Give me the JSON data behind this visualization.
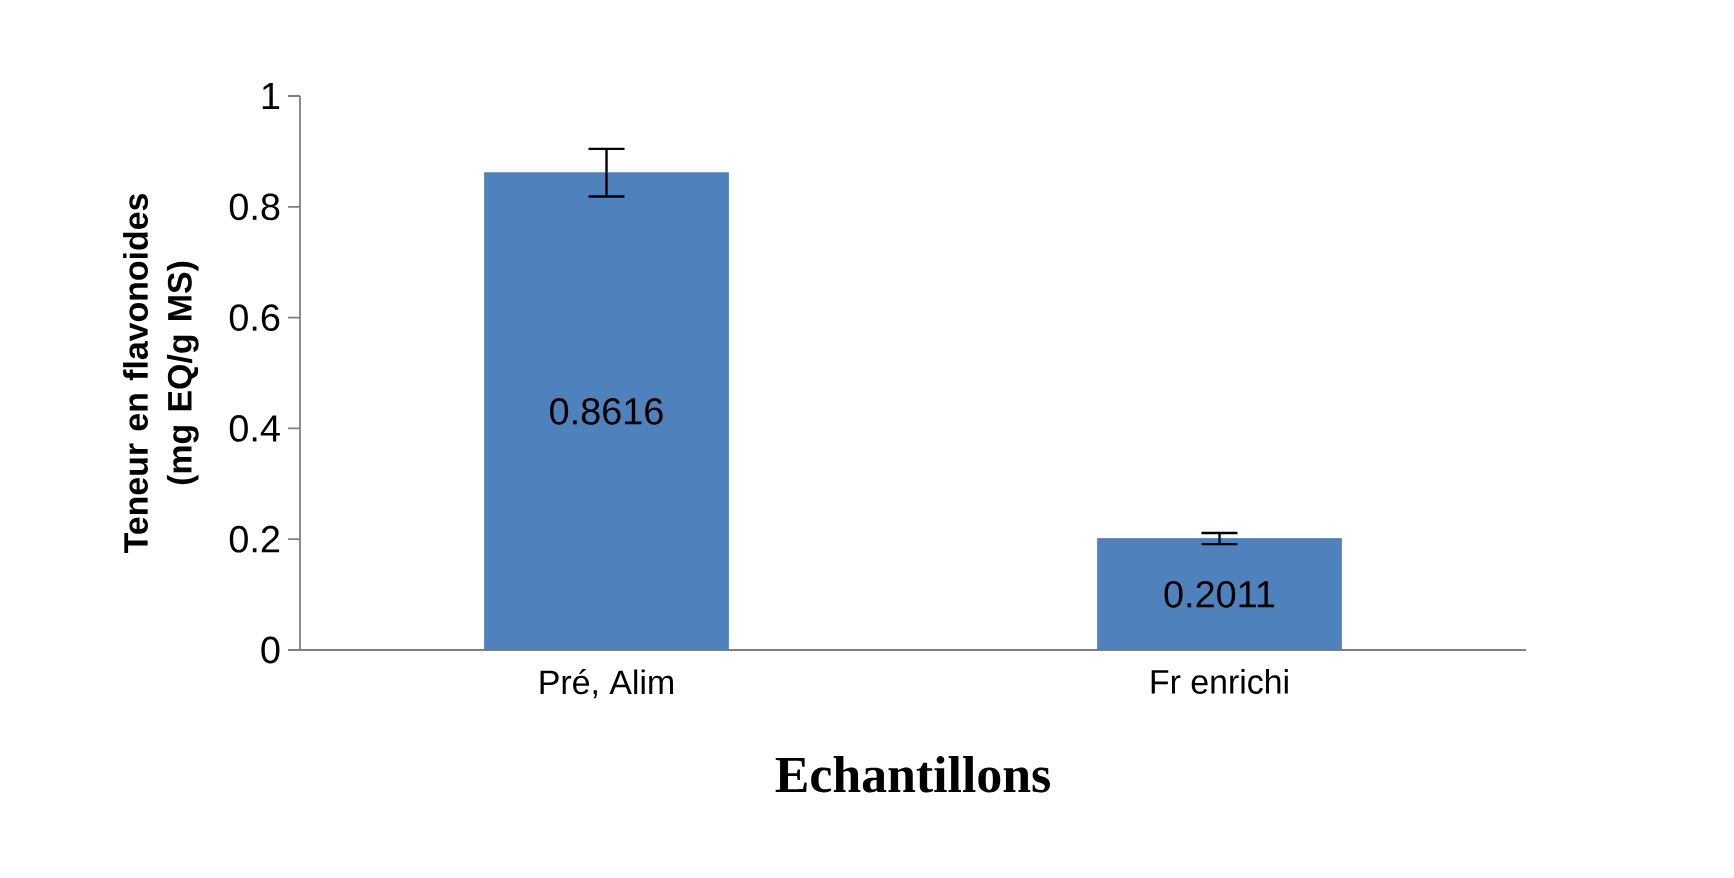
{
  "chart_data": {
    "type": "bar",
    "xlabel": "Echantillons",
    "ylabel": "Teneur en flavonoides  (mg EQ/g  MS)",
    "categories": [
      "Pré, Alim",
      "Fr enrichi"
    ],
    "values": [
      0.8616,
      0.2011
    ],
    "errors": [
      0.043,
      0.01
    ],
    "color": "#4f81bd",
    "ylim": [
      0,
      1
    ],
    "yticks": [
      0,
      0.2,
      0.4,
      0.6,
      0.8,
      1
    ],
    "data_labels": true,
    "grid": false
  }
}
